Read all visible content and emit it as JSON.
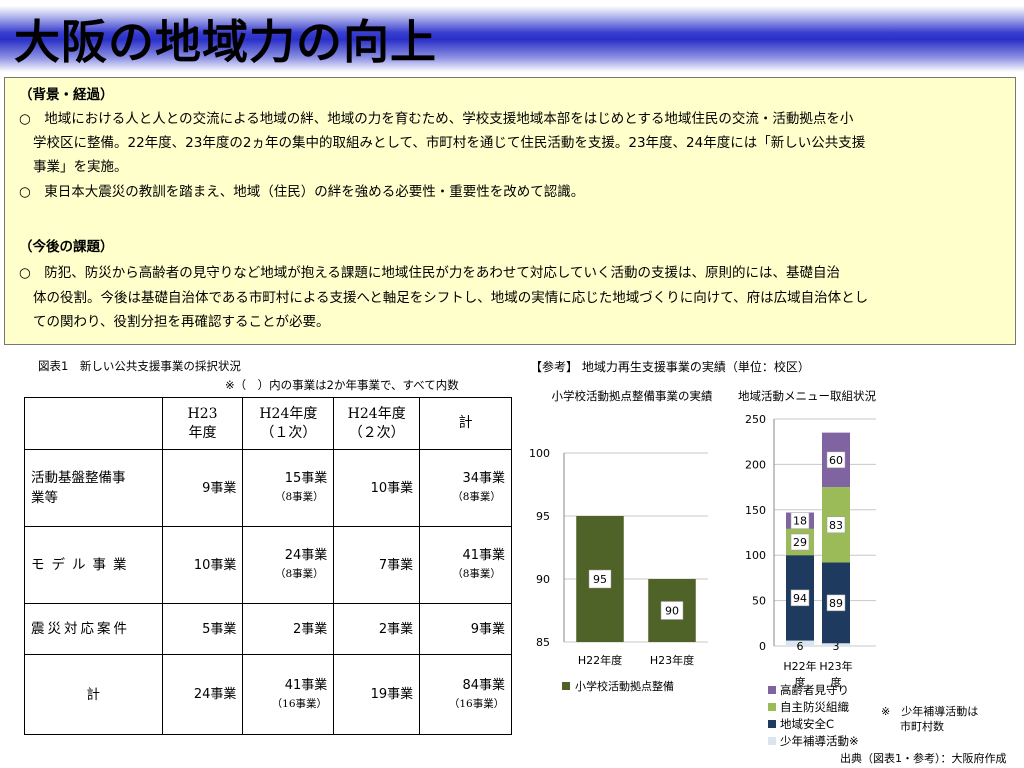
{
  "page": {
    "title": "大阪の地域力の向上"
  },
  "info_box": {
    "background_heading": "（背景・経過）",
    "background_lines": [
      "○　地域における人と人との交流による地域の絆、地域の力を育むため、学校支援地域本部をはじめとする地域住民の交流・活動拠点を小",
      "学校区に整備。22年度、23年度の2ヵ年の集中的取組みとして、市町村を通じて住民活動を支援。23年度、24年度には「新しい公共支援",
      "事業」を実施。",
      "○　東日本大震災の教訓を踏まえ、地域（住民）の絆を強める必要性・重要性を改めて認識。"
    ],
    "issues_heading": "（今後の課題）",
    "issues_lines": [
      "○　防犯、防災から高齢者の見守りなど地域が抱える課題に地域住民が力をあわせて対応していく活動の支援は、原則的には、基礎自治",
      "体の役割。今後は基礎自治体である市町村による支援へと軸足をシフトし、地域の実情に応じた地域づくりに向けて、府は広域自治体とし",
      "ての関わり、役割分担を再確認することが必要。"
    ]
  },
  "table1": {
    "caption": "図表1　新しい公共支援事業の採択状況",
    "note": "※（　）内の事業は2か年事業で、すべて内数",
    "headers": {
      "h23": [
        "H23",
        "年度"
      ],
      "h24_1": [
        "H24年度",
        "（１次）"
      ],
      "h24_2": [
        "H24年度",
        "（２次）"
      ],
      "total": "計"
    },
    "rows": [
      {
        "label": [
          "活動基盤整備事",
          "業等"
        ],
        "h23": "9事業",
        "h24_1": "15事業",
        "h24_1_sub": "（8事業）",
        "h24_2": "10事業",
        "total": "34事業",
        "total_sub": "（8事業）"
      },
      {
        "label": [
          "モデル事業"
        ],
        "h23": "10事業",
        "h24_1": "24事業",
        "h24_1_sub": "（8事業）",
        "h24_2": "7事業",
        "total": "41事業",
        "total_sub": "（8事業）"
      },
      {
        "label": [
          "震災対応案件"
        ],
        "h23": "5事業",
        "h24_1": "2事業",
        "h24_1_sub": "",
        "h24_2": "2事業",
        "total": "9事業",
        "total_sub": ""
      },
      {
        "label": [
          "計"
        ],
        "h23": "24事業",
        "h24_1": "41事業",
        "h24_1_sub": "（16事業）",
        "h24_2": "19事業",
        "total": "84事業",
        "total_sub": "（16事業）"
      }
    ]
  },
  "reference": {
    "heading": "【参考】 地域力再生支援事業の実績（単位：校区）",
    "source": "出典（図表1・参考）：大阪府作成",
    "footnote": [
      "※　少年補導活動は",
      "市町村数"
    ]
  },
  "chart_data": [
    {
      "type": "bar",
      "title": "小学校活動拠点整備事業の実績",
      "categories": [
        "H22年度",
        "H23年度"
      ],
      "series": [
        {
          "name": "小学校活動拠点整備",
          "values": [
            95,
            90
          ],
          "color": "#4f6228"
        }
      ],
      "ylim": [
        85,
        100
      ],
      "yticks": [
        85,
        90,
        95,
        100
      ],
      "grid": true,
      "legend": "bottom"
    },
    {
      "type": "bar",
      "stacked": true,
      "title": "地域活動メニュー取組状況",
      "categories": [
        "H22年度",
        "H23年度"
      ],
      "series": [
        {
          "name": "少年補導活動※",
          "values": [
            6,
            3
          ],
          "color": "#dbe5f1"
        },
        {
          "name": "地域安全C",
          "values": [
            94,
            89
          ],
          "color": "#1f3a5f"
        },
        {
          "name": "自主防災組織",
          "values": [
            29,
            83
          ],
          "color": "#9bbb59"
        },
        {
          "name": "高齢者見守り",
          "values": [
            18,
            60
          ],
          "color": "#8064a2"
        }
      ],
      "ylim": [
        0,
        250
      ],
      "yticks": [
        0,
        50,
        100,
        150,
        200,
        250
      ],
      "grid": true,
      "legend": "bottom"
    }
  ]
}
